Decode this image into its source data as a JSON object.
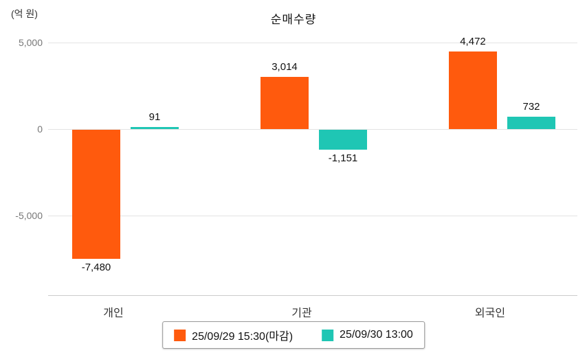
{
  "chart_data": {
    "type": "bar",
    "title": "순매수량",
    "y_unit_label": "(억 원)",
    "categories": [
      "개인",
      "기관",
      "외국인"
    ],
    "series": [
      {
        "name": "25/09/29 15:30(마감)",
        "color": "#FF5A0D",
        "values": [
          -7480,
          3014,
          4472
        ],
        "value_labels": [
          "-7,480",
          "3,014",
          "4,472"
        ]
      },
      {
        "name": "25/09/30 13:00",
        "color": "#1FC6B4",
        "values": [
          91,
          -1151,
          732
        ],
        "value_labels": [
          "91",
          "-1,151",
          "732"
        ]
      }
    ],
    "y_ticks": [
      {
        "value": 5000,
        "label": "5,000"
      },
      {
        "value": 0,
        "label": "0"
      },
      {
        "value": -5000,
        "label": "-5,000"
      }
    ],
    "ylim": [
      -8600,
      5800
    ],
    "grid": true,
    "legend_position": "bottom"
  }
}
